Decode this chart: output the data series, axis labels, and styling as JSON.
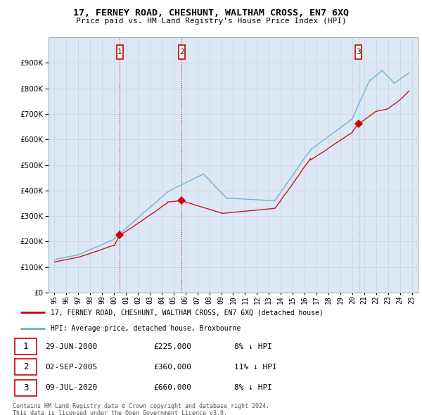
{
  "title": "17, FERNEY ROAD, CHESHUNT, WALTHAM CROSS, EN7 6XQ",
  "subtitle": "Price paid vs. HM Land Registry's House Price Index (HPI)",
  "ylim": [
    0,
    1000000
  ],
  "yticks": [
    0,
    100000,
    200000,
    300000,
    400000,
    500000,
    600000,
    700000,
    800000,
    900000
  ],
  "background_color": "#ffffff",
  "grid_color": "#d0d8e4",
  "chart_bg": "#dce8f5",
  "sale_points": [
    {
      "label": "1",
      "date_num": 2000.49,
      "price": 225000
    },
    {
      "label": "2",
      "date_num": 2005.67,
      "price": 360000
    },
    {
      "label": "3",
      "date_num": 2020.52,
      "price": 660000
    }
  ],
  "sale_table": [
    {
      "num": "1",
      "date": "29-JUN-2000",
      "price": "£225,000",
      "hpi": "8% ↓ HPI"
    },
    {
      "num": "2",
      "date": "02-SEP-2005",
      "price": "£360,000",
      "hpi": "11% ↓ HPI"
    },
    {
      "num": "3",
      "date": "09-JUL-2020",
      "price": "£660,000",
      "hpi": "8% ↓ HPI"
    }
  ],
  "legend_line1": "17, FERNEY ROAD, CHESHUNT, WALTHAM CROSS, EN7 6XQ (detached house)",
  "legend_line2": "HPI: Average price, detached house, Broxbourne",
  "footer1": "Contains HM Land Registry data © Crown copyright and database right 2024.",
  "footer2": "This data is licensed under the Open Government Licence v3.0.",
  "hpi_color": "#6baed6",
  "price_color": "#cc0000",
  "vline_color_red": "#cc0000",
  "vline_color_blue": "#6baed6",
  "x_tick_years": [
    1995,
    1996,
    1997,
    1998,
    1999,
    2000,
    2001,
    2002,
    2003,
    2004,
    2005,
    2006,
    2007,
    2008,
    2009,
    2010,
    2011,
    2012,
    2013,
    2014,
    2015,
    2016,
    2017,
    2018,
    2019,
    2020,
    2021,
    2022,
    2023,
    2024,
    2025
  ],
  "vline_positions": [
    2000.49,
    2005.67,
    2020.52
  ],
  "xlim": [
    1994.5,
    2025.5
  ]
}
